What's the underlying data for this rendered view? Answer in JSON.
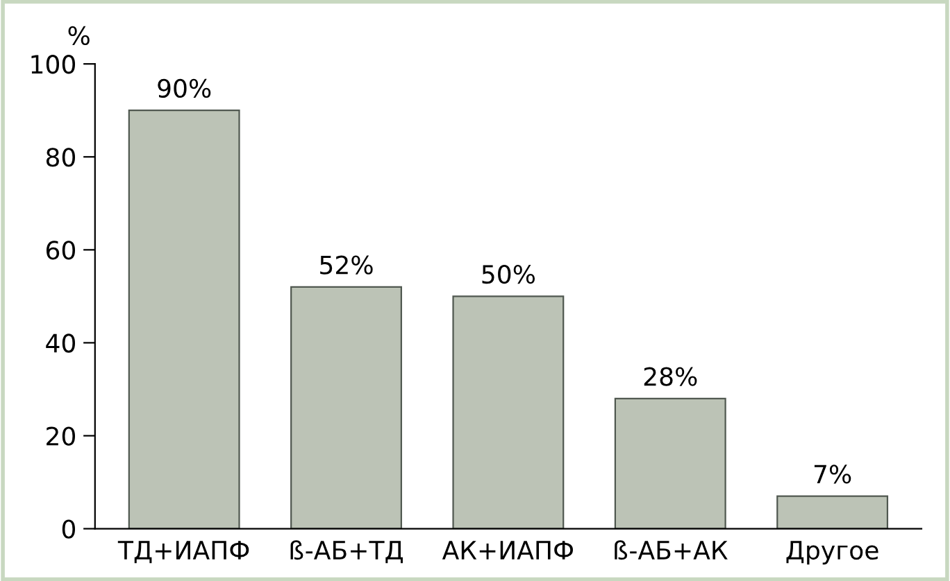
{
  "chart_data": {
    "type": "bar",
    "categories": [
      "ТД+ИАПФ",
      "ß-АБ+ТД",
      "АК+ИАПФ",
      "ß-АБ+АК",
      "Другое"
    ],
    "values": [
      90,
      52,
      50,
      28,
      7
    ],
    "value_labels": [
      "90%",
      "52%",
      "50%",
      "28%",
      "7%"
    ],
    "color": "#bcc3b6",
    "ylabel": "%",
    "ylim": [
      0,
      100
    ],
    "yticks": [
      0,
      20,
      40,
      60,
      80,
      100
    ],
    "grid": false,
    "legend": false
  }
}
